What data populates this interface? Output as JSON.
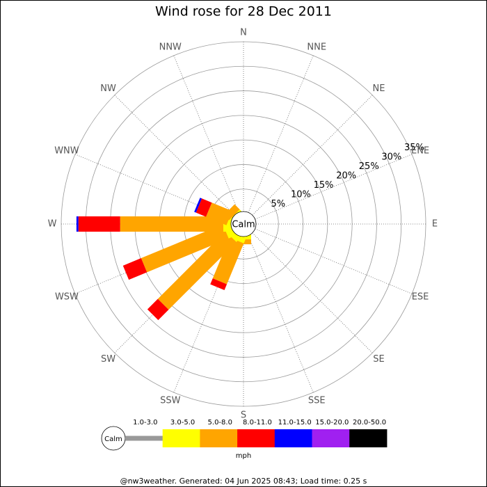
{
  "chart_data": {
    "type": "windrose",
    "title": "Wind rose for 28 Dec 2011",
    "categories": [
      "N",
      "NNE",
      "NE",
      "ENE",
      "E",
      "ESE",
      "SE",
      "SSE",
      "S",
      "SSW",
      "SW",
      "WSW",
      "W",
      "WNW",
      "NW",
      "NNW"
    ],
    "calm_label": "Calm",
    "unit": "mph",
    "rlim": [
      0,
      35
    ],
    "rticks": [
      {
        "value": 5,
        "label": "5%"
      },
      {
        "value": 10,
        "label": "10%"
      },
      {
        "value": 15,
        "label": "15%"
      },
      {
        "value": 20,
        "label": "20%"
      },
      {
        "value": 25,
        "label": "25%"
      },
      {
        "value": 30,
        "label": "30%"
      },
      {
        "value": 35,
        "label": "35%"
      }
    ],
    "series": [
      {
        "name": "1.0-3.0",
        "color": "#999999",
        "values": [
          0,
          0,
          0,
          0,
          0,
          0,
          0,
          0,
          0,
          0,
          0,
          0,
          0,
          0,
          0,
          0
        ]
      },
      {
        "name": "3.0-5.0",
        "color": "#ffff00",
        "values": [
          0,
          0,
          0,
          0,
          0,
          0,
          0,
          0,
          1,
          1.5,
          1.5,
          1.8,
          2,
          1,
          0.5,
          0
        ]
      },
      {
        "name": "5.0-8.0",
        "color": "#ffa500",
        "values": [
          0,
          0,
          0,
          0,
          0,
          0,
          0,
          0,
          1,
          9,
          19.5,
          18,
          21,
          4.5,
          1.5,
          0
        ]
      },
      {
        "name": "8.0-11.0",
        "color": "#ff0000",
        "values": [
          0,
          0,
          0,
          0,
          0,
          0,
          0,
          0,
          0,
          1.3,
          3,
          4,
          8.5,
          2.2,
          0,
          0
        ]
      },
      {
        "name": "11.0-15.0",
        "color": "#0000ff",
        "values": [
          0,
          0,
          0,
          0,
          0,
          0,
          0,
          0,
          0,
          0,
          0,
          0,
          0.4,
          0.4,
          0,
          0
        ]
      },
      {
        "name": "15.0-20.0",
        "color": "#a020f0",
        "values": [
          0,
          0,
          0,
          0,
          0,
          0,
          0,
          0,
          0,
          0,
          0,
          0,
          0,
          0,
          0,
          0
        ]
      },
      {
        "name": "20.0-50.0",
        "color": "#000000",
        "values": [
          0,
          0,
          0,
          0,
          0,
          0,
          0,
          0,
          0,
          0,
          0,
          0,
          0,
          0,
          0,
          0
        ]
      }
    ],
    "footer": "@nw3weather. Generated: 04 Jun 2025 08:43; Load time: 0.25 s"
  }
}
